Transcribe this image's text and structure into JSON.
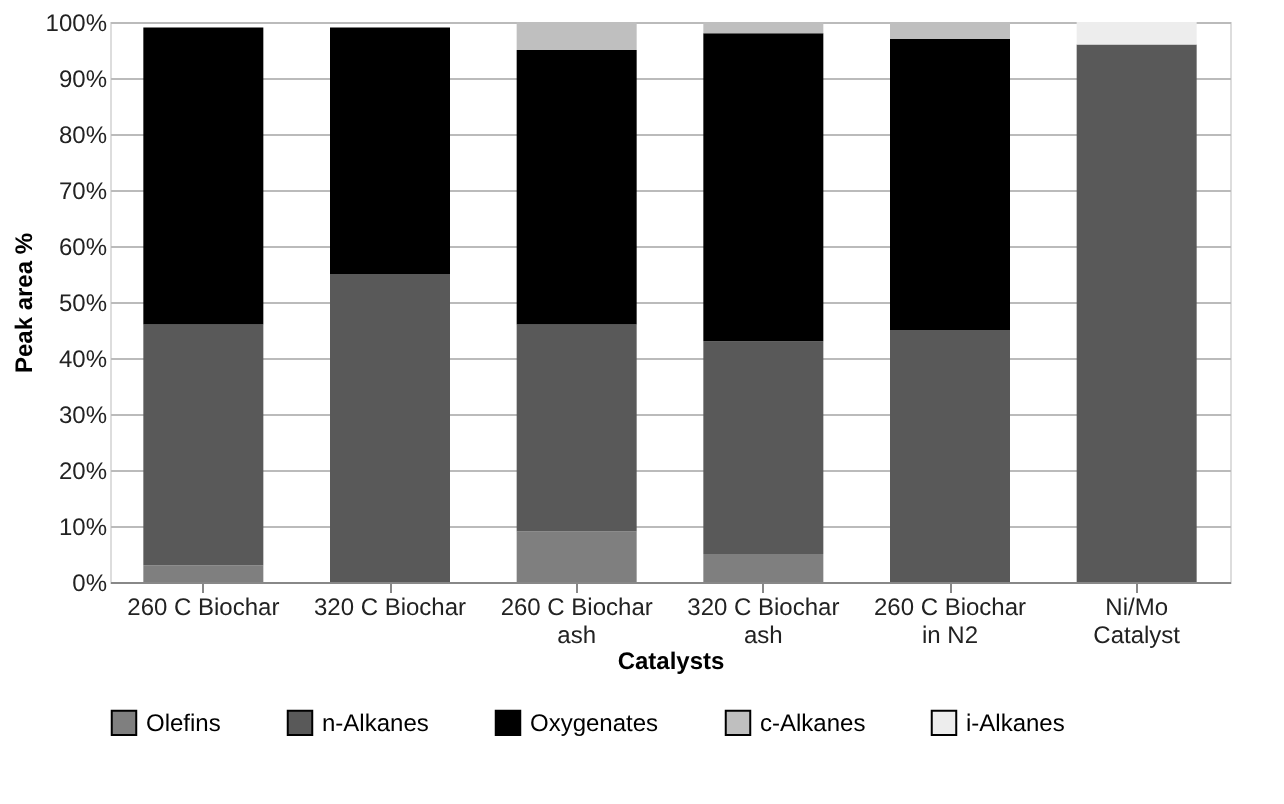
{
  "chart_data": {
    "type": "bar",
    "stacked": true,
    "xlabel": "Catalysts",
    "ylabel": "Peak area %",
    "categories": [
      "260 C Biochar",
      "320 C Biochar",
      "260 C Biochar ash",
      "320 C Biochar ash",
      "260 C Biochar in N2",
      "Ni/Mo Catalyst"
    ],
    "series": [
      {
        "name": "Olefins",
        "color": "#7f7f7f",
        "values": [
          3,
          0,
          9,
          5,
          0,
          0
        ]
      },
      {
        "name": "n-Alkanes",
        "color": "#595959",
        "values": [
          43,
          55,
          37,
          38,
          45,
          96
        ]
      },
      {
        "name": "Oxygenates",
        "color": "#000000",
        "values": [
          53,
          44,
          49,
          55,
          52,
          0
        ]
      },
      {
        "name": "c-Alkanes",
        "color": "#bfbfbf",
        "values": [
          0,
          0,
          5,
          2,
          3,
          0
        ]
      },
      {
        "name": "i-Alkanes",
        "color": "#ededed",
        "values": [
          0,
          0,
          0,
          0,
          0,
          4
        ]
      }
    ],
    "ylim": [
      0,
      100
    ],
    "yticks": [
      {
        "value": 0,
        "label": "0%"
      },
      {
        "value": 10,
        "label": "10%"
      },
      {
        "value": 20,
        "label": "20%"
      },
      {
        "value": 30,
        "label": "30%"
      },
      {
        "value": 40,
        "label": "40%"
      },
      {
        "value": 50,
        "label": "50%"
      },
      {
        "value": 60,
        "label": "60%"
      },
      {
        "value": 70,
        "label": "70%"
      },
      {
        "value": 80,
        "label": "80%"
      },
      {
        "value": 90,
        "label": "90%"
      },
      {
        "value": 100,
        "label": "100%"
      }
    ],
    "grid": "y",
    "legend": "bottom"
  }
}
